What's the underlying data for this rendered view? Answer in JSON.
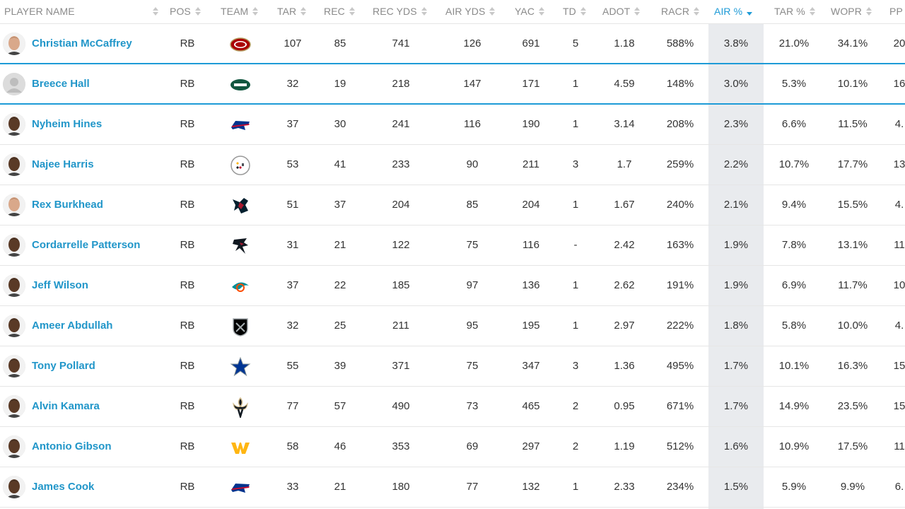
{
  "columns": [
    {
      "key": "name",
      "label": "PLAYER NAME"
    },
    {
      "key": "pos",
      "label": "POS"
    },
    {
      "key": "team",
      "label": "TEAM"
    },
    {
      "key": "tar",
      "label": "TAR"
    },
    {
      "key": "rec",
      "label": "REC"
    },
    {
      "key": "recyds",
      "label": "REC YDS"
    },
    {
      "key": "airyds",
      "label": "AIR YDS"
    },
    {
      "key": "yac",
      "label": "YAC"
    },
    {
      "key": "td",
      "label": "TD"
    },
    {
      "key": "adot",
      "label": "ADOT"
    },
    {
      "key": "racr",
      "label": "RACR"
    },
    {
      "key": "airpct",
      "label": "AIR %",
      "active": true,
      "sort": "desc"
    },
    {
      "key": "tarpct",
      "label": "TAR %"
    },
    {
      "key": "wopr",
      "label": "WOPR"
    },
    {
      "key": "pp",
      "label": "PP"
    }
  ],
  "accent_color": "#1e9bd7",
  "rows": [
    {
      "name": "Christian McCaffrey",
      "pos": "RB",
      "team": "49ers-logo",
      "tar": "107",
      "rec": "85",
      "recyds": "741",
      "airyds": "126",
      "yac": "691",
      "td": "5",
      "adot": "1.18",
      "racr": "588%",
      "airpct": "3.8%",
      "tarpct": "21.0%",
      "wopr": "34.1%",
      "pp": "20"
    },
    {
      "name": "Breece Hall",
      "pos": "RB",
      "team": "jets-logo",
      "tar": "32",
      "rec": "19",
      "recyds": "218",
      "airyds": "147",
      "yac": "171",
      "td": "1",
      "adot": "4.59",
      "racr": "148%",
      "airpct": "3.0%",
      "tarpct": "5.3%",
      "wopr": "10.1%",
      "pp": "16"
    },
    {
      "name": "Nyheim Hines",
      "pos": "RB",
      "team": "bills-logo",
      "tar": "37",
      "rec": "30",
      "recyds": "241",
      "airyds": "116",
      "yac": "190",
      "td": "1",
      "adot": "3.14",
      "racr": "208%",
      "airpct": "2.3%",
      "tarpct": "6.6%",
      "wopr": "11.5%",
      "pp": "4."
    },
    {
      "name": "Najee Harris",
      "pos": "RB",
      "team": "steelers-logo",
      "tar": "53",
      "rec": "41",
      "recyds": "233",
      "airyds": "90",
      "yac": "211",
      "td": "3",
      "adot": "1.7",
      "racr": "259%",
      "airpct": "2.2%",
      "tarpct": "10.7%",
      "wopr": "17.7%",
      "pp": "13"
    },
    {
      "name": "Rex Burkhead",
      "pos": "RB",
      "team": "texans-logo",
      "tar": "51",
      "rec": "37",
      "recyds": "204",
      "airyds": "85",
      "yac": "204",
      "td": "1",
      "adot": "1.67",
      "racr": "240%",
      "airpct": "2.1%",
      "tarpct": "9.4%",
      "wopr": "15.5%",
      "pp": "4."
    },
    {
      "name": "Cordarrelle Patterson",
      "pos": "RB",
      "team": "falcons-logo",
      "tar": "31",
      "rec": "21",
      "recyds": "122",
      "airyds": "75",
      "yac": "116",
      "td": "-",
      "adot": "2.42",
      "racr": "163%",
      "airpct": "1.9%",
      "tarpct": "7.8%",
      "wopr": "13.1%",
      "pp": "11"
    },
    {
      "name": "Jeff Wilson",
      "pos": "RB",
      "team": "dolphins-logo",
      "tar": "37",
      "rec": "22",
      "recyds": "185",
      "airyds": "97",
      "yac": "136",
      "td": "1",
      "adot": "2.62",
      "racr": "191%",
      "airpct": "1.9%",
      "tarpct": "6.9%",
      "wopr": "11.7%",
      "pp": "10"
    },
    {
      "name": "Ameer Abdullah",
      "pos": "RB",
      "team": "raiders-logo",
      "tar": "32",
      "rec": "25",
      "recyds": "211",
      "airyds": "95",
      "yac": "195",
      "td": "1",
      "adot": "2.97",
      "racr": "222%",
      "airpct": "1.8%",
      "tarpct": "5.8%",
      "wopr": "10.0%",
      "pp": "4."
    },
    {
      "name": "Tony Pollard",
      "pos": "RB",
      "team": "cowboys-logo",
      "tar": "55",
      "rec": "39",
      "recyds": "371",
      "airyds": "75",
      "yac": "347",
      "td": "3",
      "adot": "1.36",
      "racr": "495%",
      "airpct": "1.7%",
      "tarpct": "10.1%",
      "wopr": "16.3%",
      "pp": "15"
    },
    {
      "name": "Alvin Kamara",
      "pos": "RB",
      "team": "saints-logo",
      "tar": "77",
      "rec": "57",
      "recyds": "490",
      "airyds": "73",
      "yac": "465",
      "td": "2",
      "adot": "0.95",
      "racr": "671%",
      "airpct": "1.7%",
      "tarpct": "14.9%",
      "wopr": "23.5%",
      "pp": "15"
    },
    {
      "name": "Antonio Gibson",
      "pos": "RB",
      "team": "commanders-logo",
      "tar": "58",
      "rec": "46",
      "recyds": "353",
      "airyds": "69",
      "yac": "297",
      "td": "2",
      "adot": "1.19",
      "racr": "512%",
      "airpct": "1.6%",
      "tarpct": "10.9%",
      "wopr": "17.5%",
      "pp": "11"
    },
    {
      "name": "James Cook",
      "pos": "RB",
      "team": "bills-logo",
      "tar": "33",
      "rec": "21",
      "recyds": "180",
      "airyds": "77",
      "yac": "132",
      "td": "1",
      "adot": "2.33",
      "racr": "234%",
      "airpct": "1.5%",
      "tarpct": "5.9%",
      "wopr": "9.9%",
      "pp": "6."
    }
  ]
}
